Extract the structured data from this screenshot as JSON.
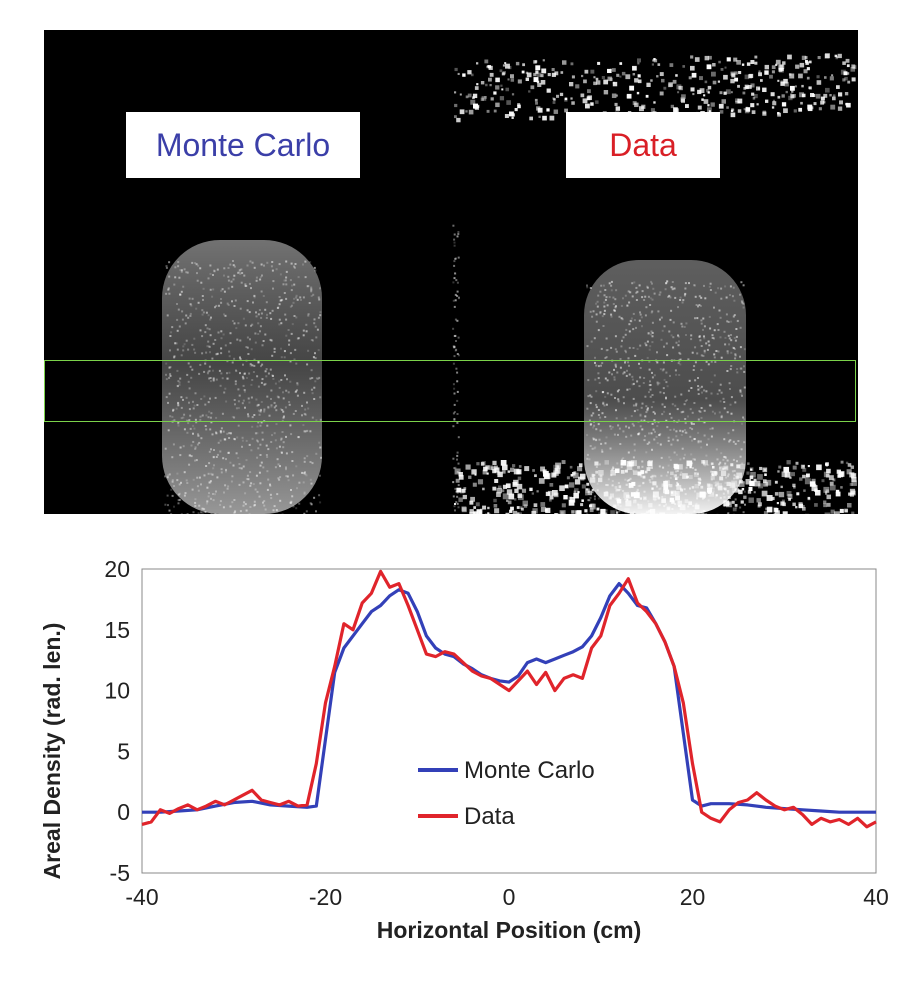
{
  "image_panel": {
    "labels": {
      "monte_carlo": {
        "text": "Monte Carlo",
        "color": "#3b3fa8"
      },
      "data": {
        "text": "Data",
        "color": "#d91f26"
      }
    },
    "roi_color": "#7bd24a"
  },
  "chart_data": {
    "type": "line",
    "title": "",
    "xlabel": "Horizontal Position (cm)",
    "ylabel": "Areal Density (rad. len.)",
    "xlim": [
      -40,
      40
    ],
    "ylim": [
      -5,
      20
    ],
    "xticks": [
      -40,
      -20,
      0,
      20,
      40
    ],
    "yticks": [
      -5,
      0,
      5,
      10,
      15,
      20
    ],
    "grid": false,
    "legend_position": "lower-center",
    "series": [
      {
        "name": "Monte Carlo",
        "color": "#3340b8",
        "x": [
          -40,
          -38,
          -36,
          -34,
          -32,
          -30,
          -28,
          -26,
          -24,
          -22,
          -21,
          -20,
          -19,
          -18,
          -17,
          -16,
          -15,
          -14,
          -13,
          -12,
          -11,
          -10,
          -9,
          -8,
          -7,
          -6,
          -5,
          -4,
          -3,
          -2,
          -1,
          0,
          1,
          2,
          3,
          4,
          5,
          6,
          7,
          8,
          9,
          10,
          11,
          12,
          13,
          14,
          15,
          16,
          17,
          18,
          19,
          20,
          21,
          22,
          24,
          26,
          28,
          30,
          32,
          34,
          36,
          38,
          40
        ],
        "y": [
          0,
          0,
          0.1,
          0.2,
          0.5,
          0.8,
          0.9,
          0.6,
          0.5,
          0.4,
          0.5,
          6.0,
          11.5,
          13.5,
          14.5,
          15.5,
          16.5,
          17.0,
          17.8,
          18.3,
          18.0,
          16.5,
          14.5,
          13.5,
          13.0,
          12.8,
          12.2,
          11.8,
          11.3,
          11.0,
          10.8,
          10.7,
          11.2,
          12.3,
          12.6,
          12.3,
          12.6,
          12.9,
          13.2,
          13.6,
          14.5,
          16.0,
          17.8,
          18.8,
          18.0,
          17.0,
          16.8,
          15.5,
          14.0,
          12.0,
          6.5,
          1.0,
          0.5,
          0.7,
          0.7,
          0.6,
          0.4,
          0.3,
          0.2,
          0.1,
          0,
          0,
          0
        ]
      },
      {
        "name": "Data",
        "color": "#e0242b",
        "x": [
          -40,
          -39,
          -38,
          -37,
          -36,
          -35,
          -34,
          -33,
          -32,
          -31,
          -30,
          -29,
          -28,
          -27,
          -26,
          -25,
          -24,
          -23,
          -22,
          -21,
          -20,
          -19,
          -18,
          -17,
          -16,
          -15,
          -14,
          -13,
          -12,
          -11,
          -10,
          -9,
          -8,
          -7,
          -6,
          -5,
          -4,
          -3,
          -2,
          -1,
          0,
          1,
          2,
          3,
          4,
          5,
          6,
          7,
          8,
          9,
          10,
          11,
          12,
          13,
          14,
          15,
          16,
          17,
          18,
          19,
          20,
          21,
          22,
          23,
          24,
          25,
          26,
          27,
          28,
          29,
          30,
          31,
          32,
          33,
          34,
          35,
          36,
          37,
          38,
          39,
          40
        ],
        "y": [
          -1.0,
          -0.8,
          0.2,
          -0.1,
          0.3,
          0.6,
          0.2,
          0.5,
          0.9,
          0.6,
          1.0,
          1.4,
          1.8,
          1.0,
          0.8,
          0.6,
          0.9,
          0.5,
          0.6,
          4.0,
          9.0,
          12.0,
          15.5,
          15.0,
          17.2,
          18.0,
          19.8,
          18.5,
          18.8,
          17.0,
          15.0,
          13.0,
          12.8,
          13.2,
          13.0,
          12.3,
          11.6,
          11.2,
          11.0,
          10.5,
          10.0,
          10.8,
          11.6,
          10.5,
          11.5,
          10.0,
          11.0,
          11.3,
          11.0,
          13.5,
          14.5,
          17.0,
          18.0,
          19.2,
          17.2,
          16.5,
          15.5,
          14.0,
          12.0,
          9.0,
          4.0,
          0.0,
          -0.5,
          -0.8,
          0.2,
          0.8,
          1.0,
          1.6,
          1.0,
          0.5,
          0.2,
          0.4,
          -0.2,
          -1.0,
          -0.5,
          -0.8,
          -0.6,
          -1.0,
          -0.5,
          -1.2,
          -0.8
        ]
      }
    ]
  }
}
